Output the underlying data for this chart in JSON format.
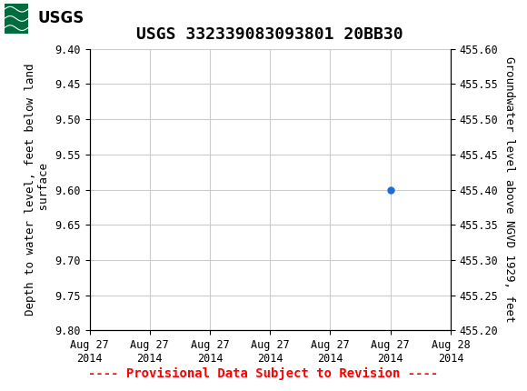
{
  "title": "USGS 332339083093801 20BB30",
  "header_color": "#006b3c",
  "ylabel_left": "Depth to water level, feet below land\n surface",
  "ylabel_right": "Groundwater level above NGVD 1929, feet",
  "ylim_left": [
    9.8,
    9.4
  ],
  "ylim_right": [
    455.2,
    455.6
  ],
  "yticks_left": [
    9.4,
    9.45,
    9.5,
    9.55,
    9.6,
    9.65,
    9.7,
    9.75,
    9.8
  ],
  "yticks_right": [
    455.2,
    455.25,
    455.3,
    455.35,
    455.4,
    455.45,
    455.5,
    455.55,
    455.6
  ],
  "xlim": [
    0,
    6
  ],
  "xtick_labels": [
    "Aug 27\n2014",
    "Aug 27\n2014",
    "Aug 27\n2014",
    "Aug 27\n2014",
    "Aug 27\n2014",
    "Aug 27\n2014",
    "Aug 28\n2014"
  ],
  "xtick_positions": [
    0,
    1,
    2,
    3,
    4,
    5,
    6
  ],
  "data_x": [
    5.0
  ],
  "data_y": [
    9.6
  ],
  "data_color": "#1a6ed8",
  "provisional_text": "---- Provisional Data Subject to Revision ----",
  "provisional_color": "red",
  "grid_color": "#cccccc",
  "background_color": "#ffffff",
  "title_fontsize": 13,
  "axis_fontsize": 9,
  "tick_fontsize": 8.5,
  "provisional_fontsize": 10
}
